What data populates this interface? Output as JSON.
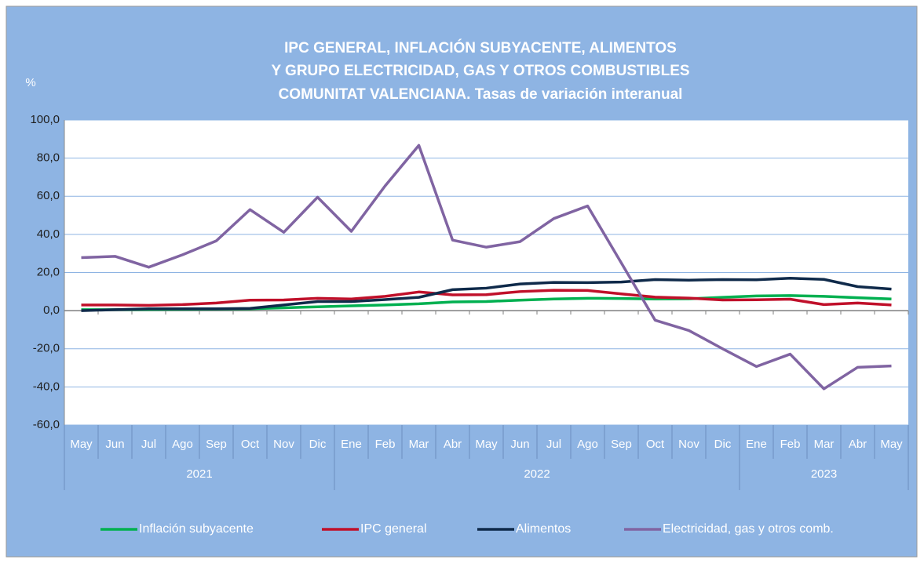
{
  "chart_data": {
    "type": "line",
    "title": [
      "IPC GENERAL, INFLACIÓN SUBYACENTE, ALIMENTOS",
      "Y GRUPO ELECTRICIDAD, GAS Y OTROS COMBUSTIBLES",
      "COMUNITAT VALENCIANA. Tasas de variación interanual"
    ],
    "y_label": "%",
    "category_groups": [
      {
        "year": "2021",
        "months": [
          "May",
          "Jun",
          "Jul",
          "Ago",
          "Sep",
          "Oct",
          "Nov",
          "Dic"
        ]
      },
      {
        "year": "2022",
        "months": [
          "Ene",
          "Feb",
          "Mar",
          "Abr",
          "May",
          "Jun",
          "Jul",
          "Ago",
          "Sep",
          "Oct",
          "Nov",
          "Dic"
        ]
      },
      {
        "year": "2023",
        "months": [
          "Ene",
          "Feb",
          "Mar",
          "Abr",
          "May"
        ]
      }
    ],
    "series": [
      {
        "name": "Inflación subyacente",
        "color": "#00b050",
        "values": [
          0.5,
          0.5,
          0.6,
          0.7,
          0.8,
          1.0,
          1.5,
          2.0,
          2.5,
          3.0,
          3.6,
          4.6,
          4.8,
          5.5,
          6.1,
          6.5,
          6.4,
          6.1,
          6.2,
          7.0,
          7.7,
          7.9,
          7.5,
          6.8,
          6.1
        ]
      },
      {
        "name": "IPC general",
        "color": "#c0102a",
        "values": [
          3.0,
          3.0,
          2.8,
          3.2,
          4.0,
          5.5,
          5.6,
          6.5,
          6.1,
          7.5,
          9.8,
          8.3,
          8.4,
          10.0,
          10.7,
          10.6,
          8.8,
          7.1,
          6.6,
          5.6,
          5.7,
          6.0,
          3.2,
          4.0,
          3.0
        ]
      },
      {
        "name": "Alimentos",
        "color": "#0f2a4a",
        "values": [
          0.0,
          0.5,
          1.0,
          1.0,
          1.0,
          1.2,
          3.0,
          4.8,
          4.8,
          5.8,
          7.0,
          11.0,
          11.8,
          14.0,
          14.8,
          14.7,
          15.0,
          16.3,
          16.0,
          16.3,
          16.2,
          17.0,
          16.4,
          12.6,
          11.3
        ]
      },
      {
        "name": "Electricidad, gas y otros comb.",
        "color": "#8064a2",
        "values": [
          27.8,
          28.5,
          22.8,
          29.3,
          36.6,
          53.0,
          41.1,
          59.5,
          41.6,
          65.4,
          86.7,
          37.0,
          33.3,
          36.2,
          48.3,
          54.9,
          25.0,
          -5.0,
          -10.4,
          -20.0,
          -29.3,
          -22.8,
          -41.0,
          -29.7,
          -29.0
        ]
      }
    ],
    "ylim": [
      -60,
      100
    ],
    "yticks": [
      {
        "value": -60,
        "label": "-60,0"
      },
      {
        "value": -40,
        "label": "-40,0"
      },
      {
        "value": -20,
        "label": "-20,0"
      },
      {
        "value": 0,
        "label": "0,0"
      },
      {
        "value": 20,
        "label": "20,0"
      },
      {
        "value": 40,
        "label": "40,0"
      },
      {
        "value": 60,
        "label": "60,0"
      },
      {
        "value": 80,
        "label": "80,0"
      },
      {
        "value": 100,
        "label": "100,0"
      }
    ],
    "grid": true,
    "legend": "bottom"
  }
}
